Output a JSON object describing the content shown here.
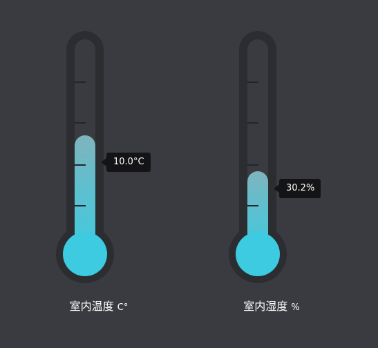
{
  "gauges": [
    {
      "id": "temperature",
      "label": "室内温度",
      "unit": "C°",
      "value_text": "10.0°C",
      "level": 0.4,
      "mercury_color": "#3ccbe0"
    },
    {
      "id": "humidity",
      "label": "室内湿度",
      "unit": "%",
      "value_text": "30.2%",
      "level": 0.28,
      "mercury_color": "#3ccbe0"
    }
  ],
  "colors": {
    "background": "#3a3b40",
    "casing": "#2c2d31",
    "tooltip": "#141416",
    "tick": "#24252a"
  }
}
